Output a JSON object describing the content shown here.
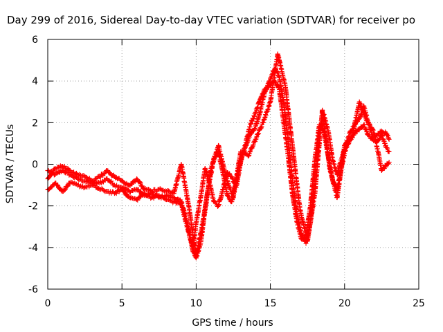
{
  "chart_data": {
    "type": "scatter",
    "title": "Day 299 of 2016, Sidereal Day-to-day VTEC variation (SDTVAR) for receiver po",
    "xlabel": "GPS time / hours",
    "ylabel": "SDTVAR / TECUs",
    "xlim": [
      0,
      25
    ],
    "ylim": [
      -6,
      6
    ],
    "xticks": [
      0,
      5,
      10,
      15,
      20,
      25
    ],
    "yticks": [
      -6,
      -4,
      -2,
      0,
      2,
      4,
      6
    ],
    "grid": true,
    "marker": "+",
    "series": [
      {
        "color": "#ff0000",
        "tracks": [
          {
            "x": [
              0.0,
              0.5,
              1.0,
              1.5,
              2.0,
              2.5,
              3.0,
              3.5,
              4.0,
              4.5,
              5.0,
              5.5,
              6.0,
              6.5,
              7.0,
              7.5,
              8.0,
              8.5,
              9.0,
              9.2,
              9.4,
              9.6,
              9.8,
              10.0,
              10.3,
              10.6,
              10.9,
              11.2,
              11.5,
              11.8,
              12.1,
              12.4,
              12.7,
              13.0,
              13.3,
              13.6,
              14.0,
              14.3,
              14.6,
              15.0,
              15.3,
              15.6,
              15.9,
              16.2,
              16.5,
              16.8,
              17.1,
              17.4,
              17.7,
              18.0,
              18.3,
              18.6,
              18.9,
              19.2,
              19.5,
              19.8,
              20.1,
              20.4,
              20.7,
              21.0,
              21.3,
              21.6,
              21.9,
              22.2,
              22.5,
              22.8,
              23.0
            ],
            "y": [
              -0.3,
              -0.5,
              -0.3,
              -0.5,
              -0.7,
              -0.8,
              -0.9,
              -0.9,
              -0.7,
              -1.0,
              -1.1,
              -1.3,
              -1.2,
              -1.5,
              -1.4,
              -1.6,
              -1.5,
              -1.6,
              -1.8,
              -2.3,
              -2.8,
              -3.5,
              -4.2,
              -4.5,
              -3.8,
              -2.2,
              -0.8,
              0.3,
              0.6,
              -0.4,
              -1.5,
              -1.8,
              -0.8,
              0.2,
              0.8,
              1.4,
              1.8,
              2.5,
              3.4,
              4.1,
              4.6,
              4.2,
              3.0,
              1.2,
              -0.8,
              -2.4,
              -3.4,
              -3.8,
              -2.8,
              -0.5,
              1.5,
              2.4,
              1.6,
              0.2,
              -0.5,
              0.3,
              1.0,
              1.6,
              1.9,
              2.2,
              2.8,
              2.0,
              1.3,
              1.4,
              1.6,
              1.5,
              1.2
            ]
          },
          {
            "x": [
              0.0,
              0.5,
              1.0,
              1.5,
              2.0,
              2.5,
              3.0,
              3.5,
              4.0,
              4.5,
              5.0,
              5.5,
              6.0,
              6.5,
              7.0,
              7.5,
              8.0,
              8.5,
              9.0,
              9.2,
              9.4,
              9.6,
              9.8,
              10.0,
              10.3,
              10.6,
              10.9,
              11.2,
              11.5,
              11.8,
              12.1,
              12.4,
              12.7,
              13.0,
              13.3,
              13.6,
              14.0,
              14.3,
              14.6,
              15.0,
              15.3,
              15.6,
              15.9,
              16.2,
              16.5,
              16.8,
              17.1,
              17.4,
              17.7,
              18.0,
              18.3,
              18.6,
              18.9,
              19.2,
              19.5,
              19.8,
              20.1,
              20.4,
              20.7,
              21.0,
              21.3,
              21.6,
              21.9,
              22.2,
              22.5,
              22.8,
              23.0
            ],
            "y": [
              -1.2,
              -0.9,
              -1.3,
              -0.9,
              -1.0,
              -1.1,
              -1.0,
              -1.2,
              -1.3,
              -1.4,
              -1.2,
              -1.6,
              -1.7,
              -1.4,
              -1.6,
              -1.5,
              -1.7,
              -1.8,
              -1.9,
              -2.5,
              -3.0,
              -3.6,
              -4.0,
              -2.8,
              -1.6,
              -0.2,
              -0.9,
              -1.8,
              -2.0,
              -1.2,
              -0.4,
              -0.6,
              -1.1,
              0.1,
              0.9,
              1.8,
              2.5,
              3.1,
              3.6,
              3.8,
              4.0,
              3.6,
              2.0,
              0.4,
              -1.5,
              -2.8,
              -3.6,
              -3.5,
              -2.0,
              0.2,
              1.9,
              1.6,
              0.4,
              -0.8,
              -1.2,
              -0.1,
              0.8,
              1.2,
              1.5,
              1.7,
              1.9,
              1.4,
              1.2,
              1.1,
              1.4,
              0.8,
              0.6
            ]
          },
          {
            "x": [
              0.0,
              0.5,
              1.0,
              1.5,
              2.0,
              2.5,
              3.0,
              3.5,
              4.0,
              4.5,
              5.0,
              5.5,
              6.0,
              6.5,
              7.0,
              7.5,
              8.0,
              8.5,
              9.0,
              9.5,
              10.0,
              10.5,
              11.0,
              11.5,
              12.0,
              12.5,
              13.0,
              13.5,
              14.0,
              14.5,
              15.0,
              15.5,
              16.0,
              16.5,
              17.0,
              17.5,
              18.0,
              18.5,
              19.0,
              19.5,
              20.0,
              20.5,
              21.0,
              21.5,
              22.0,
              22.5,
              23.0
            ],
            "y": [
              -0.7,
              -0.2,
              -0.1,
              -0.3,
              -0.5,
              -0.6,
              -0.8,
              -0.6,
              -0.3,
              -0.6,
              -0.8,
              -1.0,
              -0.7,
              -1.2,
              -1.3,
              -1.2,
              -1.3,
              -1.4,
              0.0,
              -2.0,
              -4.4,
              -2.6,
              -0.2,
              0.9,
              -0.6,
              -1.6,
              0.6,
              0.4,
              1.2,
              2.0,
              3.0,
              5.3,
              3.8,
              0.8,
              -2.2,
              -3.7,
              -1.4,
              2.6,
              -0.2,
              -1.6,
              0.9,
              1.3,
              3.0,
              2.1,
              1.5,
              -0.3,
              0.1
            ]
          }
        ]
      }
    ]
  }
}
